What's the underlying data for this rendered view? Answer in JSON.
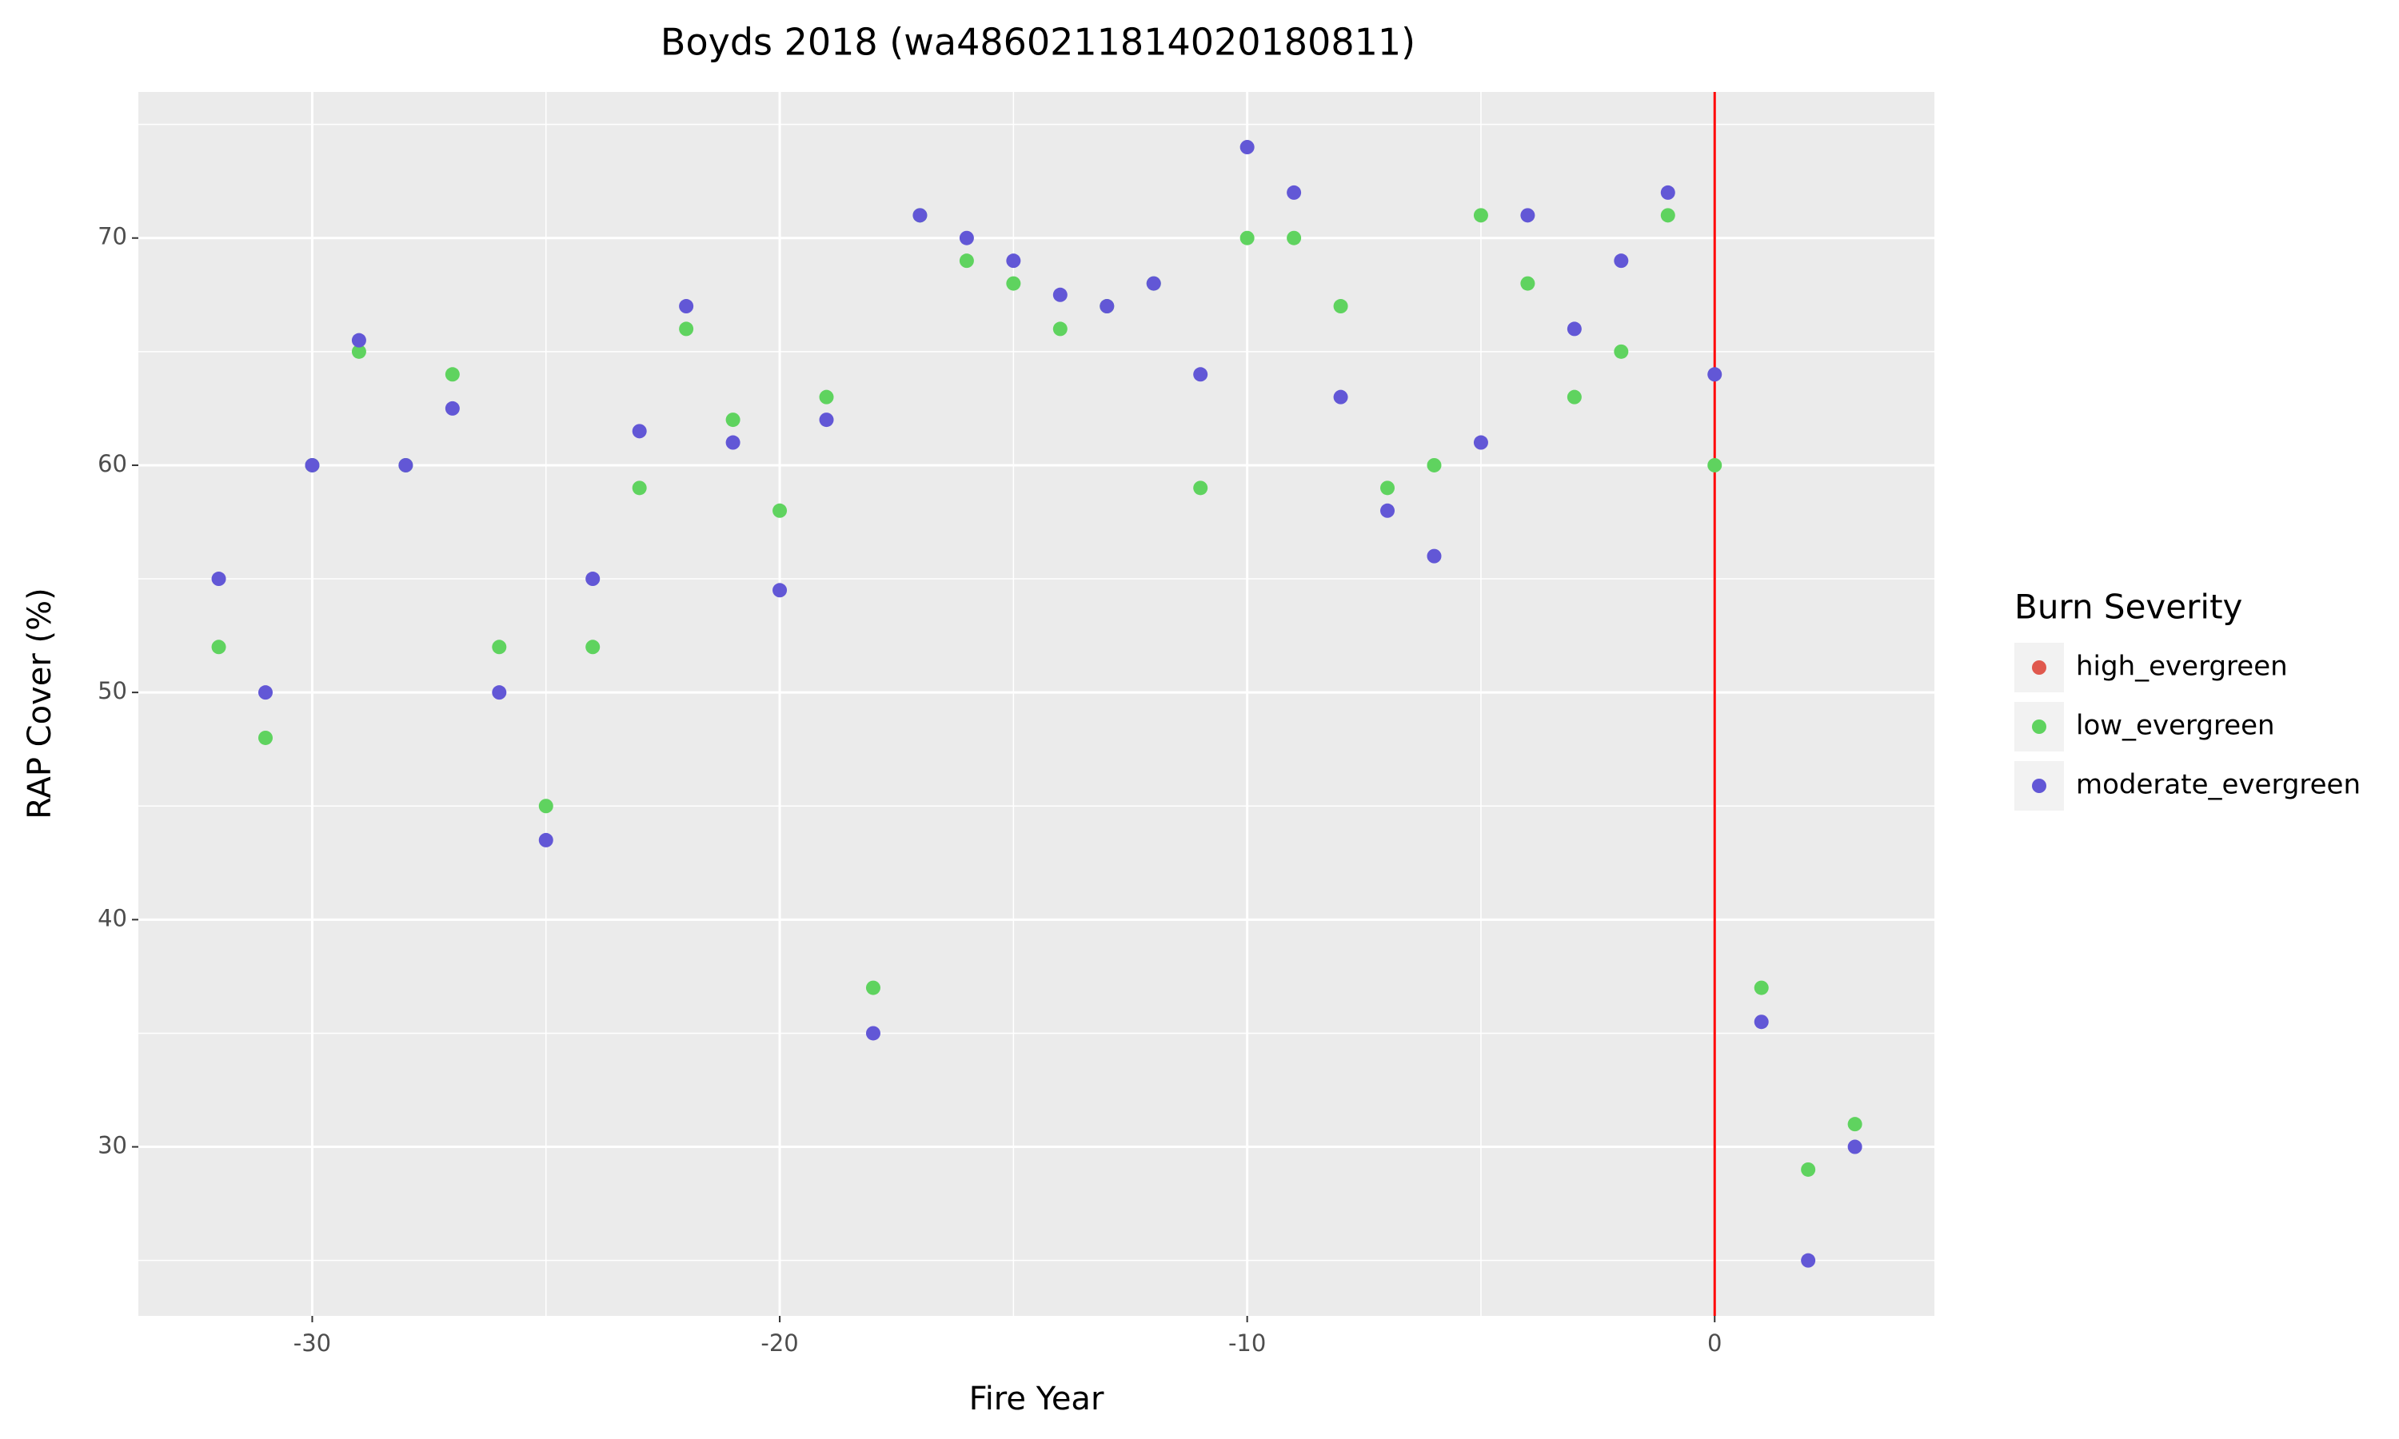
{
  "chart_data": {
    "type": "scatter",
    "title": "Boyds 2018 (wa4860211814020180811)",
    "x_label": "Fire Year",
    "y_label": "RAP Cover (%)",
    "legend_title": "Burn Severity",
    "legend_position": "right",
    "x": [
      -32,
      -31,
      -30,
      -29,
      -28,
      -27,
      -26,
      -25,
      -24,
      -23,
      -22,
      -21,
      -20,
      -19,
      -18,
      -17,
      -16,
      -15,
      -14,
      -13,
      -12,
      -11,
      -10,
      -9,
      -8,
      -7,
      -6,
      -5,
      -4,
      -3,
      -2,
      -1,
      0,
      1,
      2,
      3
    ],
    "series": [
      {
        "name": "high_evergreen",
        "color": "#e0594e",
        "values": [
          null,
          null,
          null,
          null,
          null,
          null,
          null,
          null,
          null,
          null,
          null,
          null,
          null,
          null,
          null,
          null,
          null,
          null,
          null,
          null,
          null,
          null,
          null,
          null,
          null,
          null,
          null,
          null,
          null,
          null,
          null,
          null,
          null,
          null,
          null,
          null
        ]
      },
      {
        "name": "low_evergreen",
        "color": "#5fd35f",
        "values": [
          52,
          48,
          60,
          65,
          60,
          64,
          52,
          45,
          52,
          59,
          66,
          62,
          58,
          63,
          37,
          71,
          69,
          68,
          66,
          67,
          68,
          59,
          70,
          70,
          67,
          59,
          60,
          71,
          68,
          63,
          65,
          71,
          60,
          37,
          29,
          31
        ]
      },
      {
        "name": "moderate_evergreen",
        "color": "#6257d6",
        "values": [
          55,
          50,
          60,
          65.5,
          60,
          62.5,
          50,
          43.5,
          55,
          61.5,
          67,
          61,
          54.5,
          62,
          35,
          71,
          70,
          69,
          67.5,
          67,
          68,
          64,
          74,
          72,
          63,
          58,
          56,
          61,
          71,
          66,
          69,
          72,
          64,
          35.5,
          25,
          30
        ]
      }
    ],
    "xlim": [
      -33.72,
      4.7
    ],
    "ylim": [
      22.56,
      76.43
    ],
    "xticks": [
      -30,
      -20,
      -10,
      0
    ],
    "yticks": [
      30,
      40,
      50,
      60,
      70
    ],
    "x_minor_ticks": [
      -25,
      -15,
      -5
    ],
    "y_minor_ticks": [
      25,
      35,
      45,
      55,
      65,
      75
    ],
    "grid": true,
    "vline": {
      "x": 0,
      "color": "#ff0000"
    }
  }
}
